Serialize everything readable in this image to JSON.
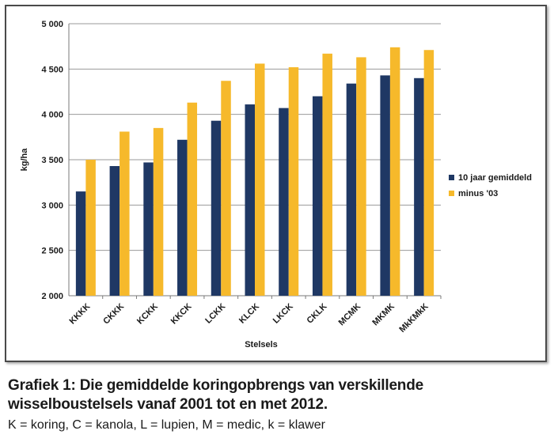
{
  "chart_data": {
    "type": "bar",
    "xlabel": "Stelsels",
    "ylabel": "kg/ha",
    "ylim": [
      2000,
      5000
    ],
    "yticks": [
      2000,
      2500,
      3000,
      3500,
      4000,
      4500,
      5000
    ],
    "ytick_labels": [
      "2 000",
      "2 500",
      "3 000",
      "3 500",
      "4 000",
      "4 500",
      "5 000"
    ],
    "grid": "horizontal",
    "legend_position": "right",
    "categories": [
      "KKKK",
      "CKKK",
      "KCKK",
      "KKCK",
      "LCKK",
      "KLCK",
      "LKCK",
      "CKLK",
      "MCMK",
      "MKMK",
      "MkKMkK"
    ],
    "series": [
      {
        "name": "10 jaar gemiddeld",
        "color": "#1f3864",
        "values": [
          3150,
          3430,
          3470,
          3720,
          3930,
          4110,
          4070,
          4200,
          4340,
          4430,
          4400
        ]
      },
      {
        "name": "minus '03",
        "color": "#f6b92b",
        "values": [
          3500,
          3810,
          3850,
          4130,
          4370,
          4560,
          4520,
          4670,
          4630,
          4740,
          4710
        ]
      }
    ]
  },
  "caption": {
    "title": "Grafiek 1: Die gemiddelde koringopbrengs van verskillende wisselboustelsels vanaf 2001 tot en met 2012.",
    "note": "K = koring, C = kanola, L = lupien, M = medic, k = klawer"
  }
}
